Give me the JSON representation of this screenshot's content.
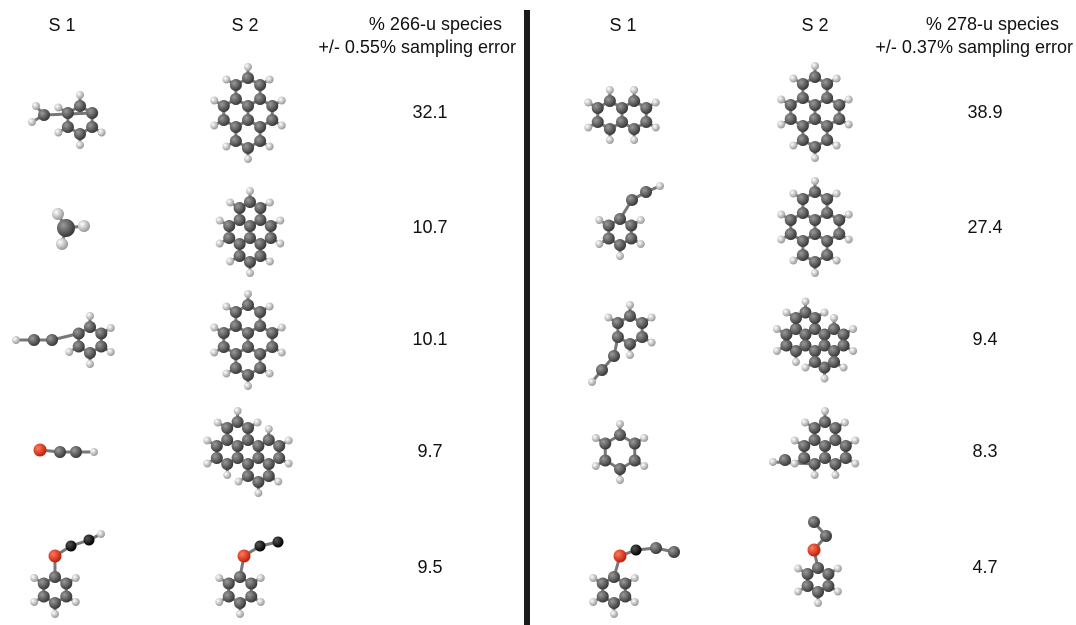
{
  "panels": [
    {
      "header": {
        "s1": "S 1",
        "s2": "S 2",
        "species": "% 266-u species",
        "error": "+/- 0.55% sampling error"
      },
      "rows": [
        "32.1",
        "10.7",
        "10.1",
        "9.7",
        "9.5"
      ]
    },
    {
      "header": {
        "s1": "S 1",
        "s2": "S 2",
        "species": "% 278-u species",
        "error": "+/- 0.37% sampling error"
      },
      "rows": [
        "38.9",
        "27.4",
        "9.4",
        "8.3",
        "4.7"
      ]
    }
  ]
}
